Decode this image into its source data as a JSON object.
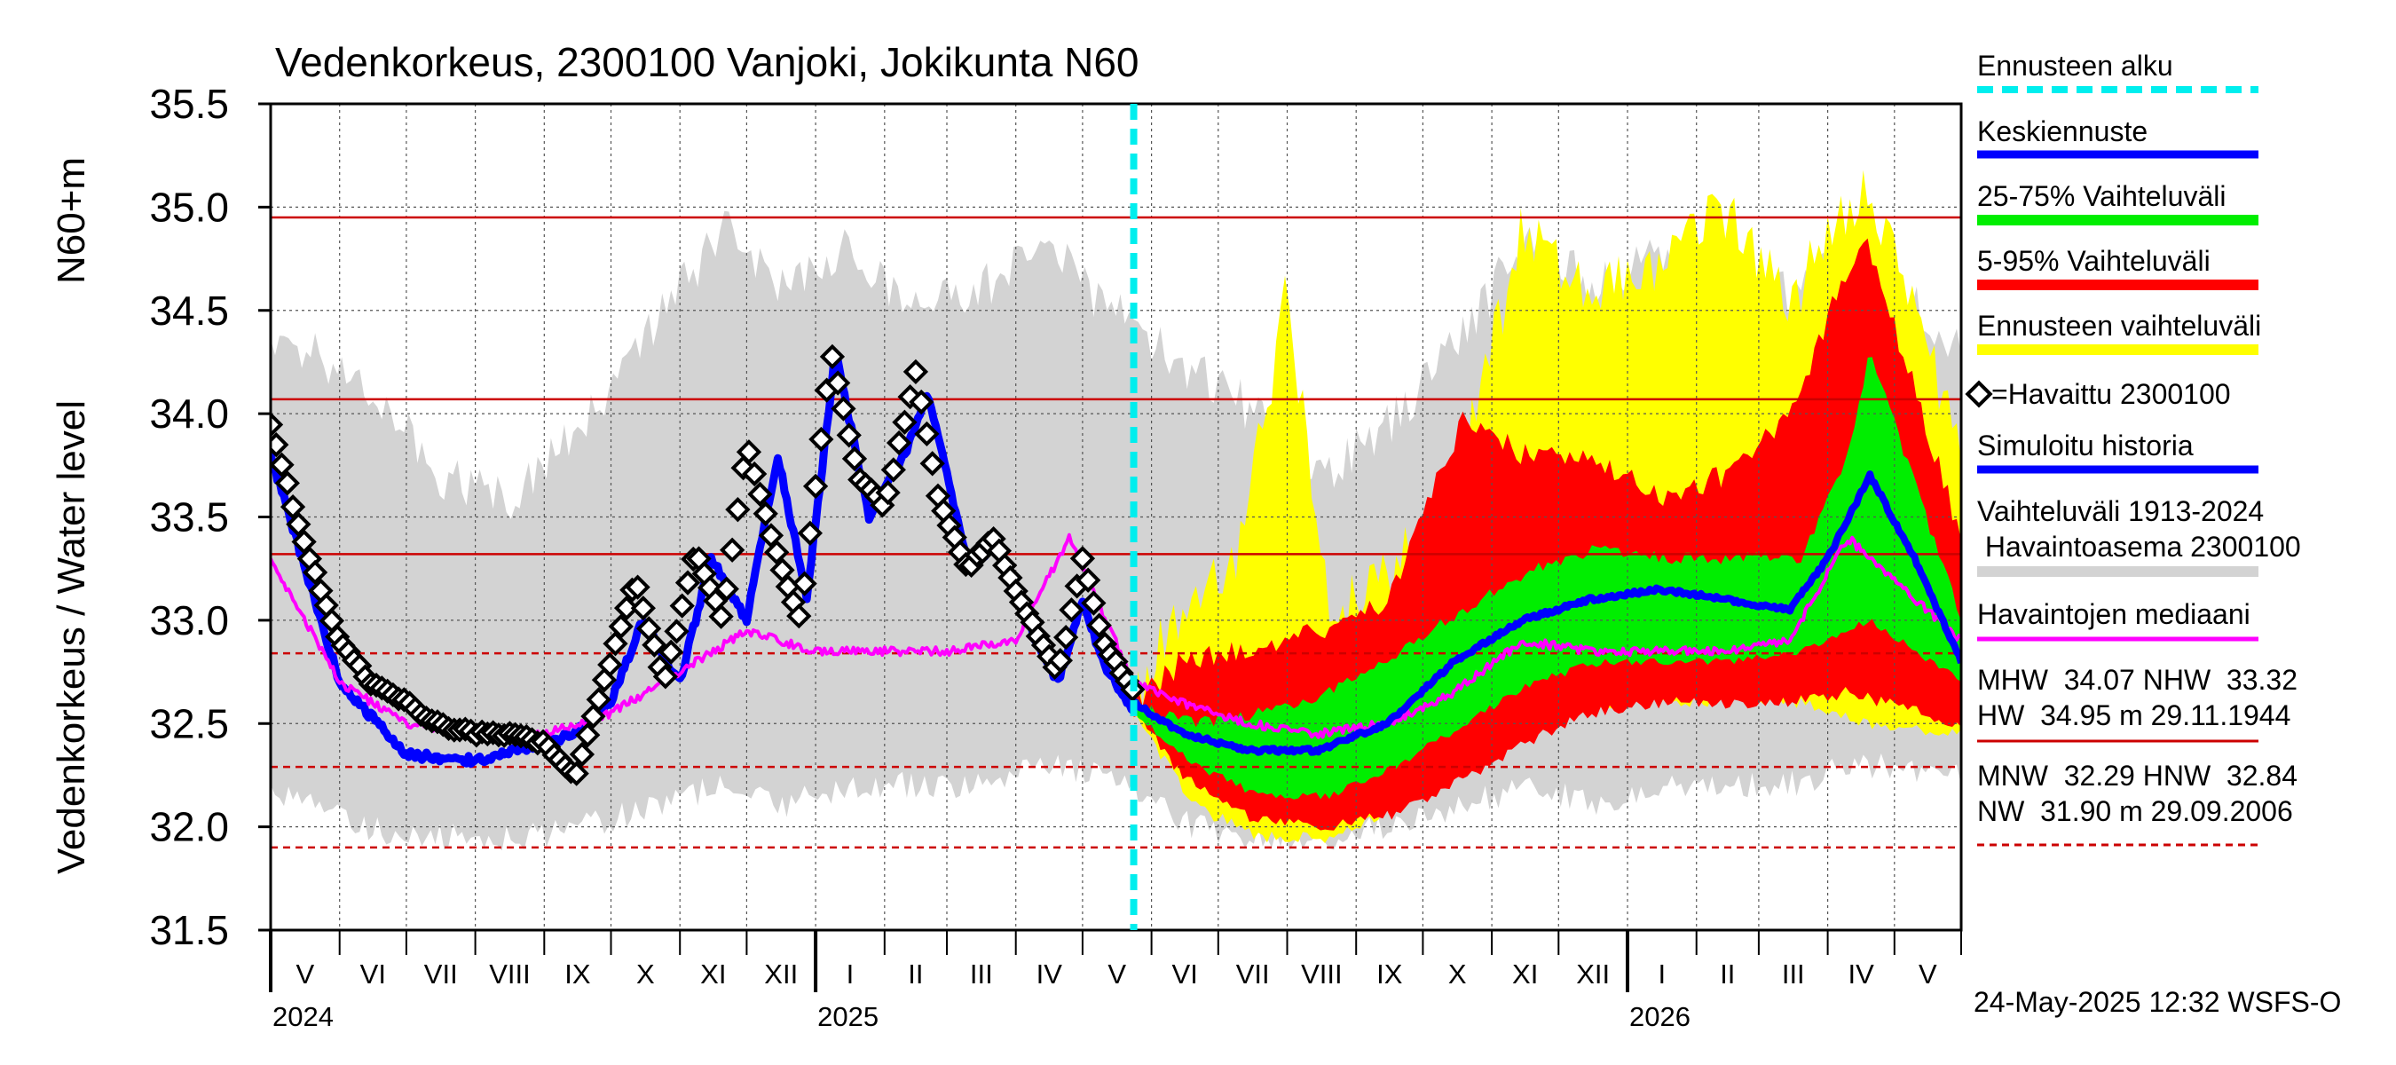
{
  "chart_data": {
    "type": "line",
    "title": "Vedenkorkeus, 2300100 Vanjoki, Jokikunta N60",
    "ylabel": "Vedenkorkeus / Water level",
    "yunit": "N60+m",
    "ylim": [
      31.5,
      35.5
    ],
    "yticks": [
      "31.5",
      "32.0",
      "32.5",
      "33.0",
      "33.5",
      "34.0",
      "34.5",
      "35.0",
      "35.5"
    ],
    "xlim": [
      "2024-05-01",
      "2026-05-31"
    ],
    "forecast_start": "2025-05-24",
    "months": [
      "V",
      "VI",
      "VII",
      "VIII",
      "IX",
      "X",
      "XI",
      "XII",
      "I",
      "II",
      "III",
      "IV",
      "V",
      "VI",
      "VII",
      "VIII",
      "IX",
      "X",
      "XI",
      "XII",
      "I",
      "II",
      "III",
      "IV",
      "V"
    ],
    "years": [
      {
        "label": "2024",
        "date": "2024-05-01"
      },
      {
        "label": "2025",
        "date": "2025-01-01"
      },
      {
        "label": "2026",
        "date": "2026-01-01"
      }
    ],
    "reference_lines": [
      {
        "name": "HW",
        "value": 34.95,
        "style": "solid"
      },
      {
        "name": "MHW",
        "value": 34.07,
        "style": "solid"
      },
      {
        "name": "NHW",
        "value": 33.32,
        "style": "solid"
      },
      {
        "name": "HNW",
        "value": 32.84,
        "style": "dashed"
      },
      {
        "name": "MNW",
        "value": 32.29,
        "style": "dashed"
      },
      {
        "name": "NW",
        "value": 31.9,
        "style": "dashed"
      }
    ],
    "legend": {
      "forecast_start": "Ennusteen alku",
      "mean_forecast": "Keskiennuste",
      "range_25_75": "25-75% Vaihteluväli",
      "range_5_95": "5-95% Vaihteluväli",
      "forecast_range": "Ennusteen vaihteluväli",
      "observed": "=Havaittu 2300100",
      "simulated": "Simuloitu historia",
      "hist_range_1": "Vaihteluväli 1913-2024",
      "hist_range_2": " Havaintoasema 2300100",
      "median": "Havaintojen mediaani"
    },
    "stats": {
      "line1": "MHW  34.07 NHW  33.32",
      "line2": "HW  34.95 m 29.11.1944",
      "line3": "MNW  32.29 HNW  32.84",
      "line4": "NW  31.90 m 29.09.2006"
    },
    "footer": "24-May-2025 12:32 WSFS-O",
    "colors": {
      "hist_range": "#d3d3d3",
      "forecast_range": "#ffff00",
      "range_5_95": "#ff0000",
      "range_25_75": "#00ee00",
      "mean": "#0000ff",
      "simulated": "#0000ff",
      "median": "#ff00ff",
      "observed": "#000000",
      "forecast_start": "#00eeee",
      "reference": "#cc0000"
    },
    "series": {
      "hist_range_upper": [
        [
          "2024-05-01",
          34.35
        ],
        [
          "2024-06-10",
          34.2
        ],
        [
          "2024-07-15",
          33.7
        ],
        [
          "2024-08-20",
          33.6
        ],
        [
          "2024-09-20",
          34.0
        ],
        [
          "2024-10-20",
          34.4
        ],
        [
          "2024-11-20",
          34.9
        ],
        [
          "2024-12-15",
          34.6
        ],
        [
          "2025-01-15",
          34.8
        ],
        [
          "2025-02-15",
          34.5
        ],
        [
          "2025-03-15",
          34.6
        ],
        [
          "2025-04-15",
          34.8
        ],
        [
          "2025-05-24",
          34.4
        ],
        [
          "2025-06-20",
          34.2
        ],
        [
          "2025-07-20",
          34.0
        ],
        [
          "2025-08-20",
          33.7
        ],
        [
          "2025-09-20",
          34.0
        ],
        [
          "2025-10-20",
          34.4
        ],
        [
          "2025-11-20",
          34.9
        ],
        [
          "2025-12-15",
          34.6
        ],
        [
          "2026-01-15",
          34.8
        ],
        [
          "2026-02-15",
          34.5
        ],
        [
          "2026-03-15",
          34.6
        ],
        [
          "2026-04-15",
          34.8
        ],
        [
          "2026-05-31",
          34.3
        ]
      ],
      "hist_range_lower": [
        [
          "2024-05-01",
          32.2
        ],
        [
          "2024-06-10",
          32.0
        ],
        [
          "2024-07-15",
          31.95
        ],
        [
          "2024-08-20",
          31.95
        ],
        [
          "2024-09-20",
          32.0
        ],
        [
          "2024-10-20",
          32.1
        ],
        [
          "2024-11-20",
          32.2
        ],
        [
          "2024-12-15",
          32.1
        ],
        [
          "2025-01-15",
          32.2
        ],
        [
          "2025-02-15",
          32.2
        ],
        [
          "2025-03-15",
          32.2
        ],
        [
          "2025-04-15",
          32.3
        ],
        [
          "2025-05-24",
          32.2
        ],
        [
          "2025-06-20",
          32.0
        ],
        [
          "2025-07-20",
          31.95
        ],
        [
          "2025-08-20",
          31.95
        ],
        [
          "2025-09-20",
          32.0
        ],
        [
          "2025-10-20",
          32.1
        ],
        [
          "2025-11-20",
          32.2
        ],
        [
          "2025-12-15",
          32.1
        ],
        [
          "2026-01-15",
          32.2
        ],
        [
          "2026-02-15",
          32.2
        ],
        [
          "2026-03-15",
          32.2
        ],
        [
          "2026-04-15",
          32.3
        ],
        [
          "2026-05-31",
          32.25
        ]
      ],
      "forecast_upper": [
        [
          "2025-05-24",
          32.6
        ],
        [
          "2025-06-10",
          33.0
        ],
        [
          "2025-07-10",
          33.3
        ],
        [
          "2025-08-01",
          34.6
        ],
        [
          "2025-08-20",
          33.0
        ],
        [
          "2025-09-15",
          33.2
        ],
        [
          "2025-10-15",
          33.6
        ],
        [
          "2025-11-15",
          34.9
        ],
        [
          "2025-12-15",
          34.6
        ],
        [
          "2026-01-15",
          34.7
        ],
        [
          "2026-02-15",
          35.0
        ],
        [
          "2026-03-15",
          34.5
        ],
        [
          "2026-04-01",
          34.9
        ],
        [
          "2026-04-20",
          35.1
        ],
        [
          "2026-05-31",
          33.8
        ]
      ],
      "forecast_lower": [
        [
          "2025-05-24",
          32.55
        ],
        [
          "2025-06-20",
          32.1
        ],
        [
          "2025-07-20",
          31.95
        ],
        [
          "2025-08-20",
          31.95
        ],
        [
          "2025-09-20",
          32.1
        ],
        [
          "2025-10-20",
          32.3
        ],
        [
          "2025-11-20",
          32.5
        ],
        [
          "2025-12-20",
          32.6
        ],
        [
          "2026-01-20",
          32.6
        ],
        [
          "2026-02-20",
          32.6
        ],
        [
          "2026-03-20",
          32.6
        ],
        [
          "2026-04-20",
          32.5
        ],
        [
          "2026-05-31",
          32.45
        ]
      ],
      "p5_95_upper": [
        [
          "2025-05-24",
          32.6
        ],
        [
          "2025-06-15",
          32.8
        ],
        [
          "2025-07-15",
          32.85
        ],
        [
          "2025-08-15",
          32.95
        ],
        [
          "2025-09-15",
          33.1
        ],
        [
          "2025-10-01",
          33.5
        ],
        [
          "2025-10-20",
          34.0
        ],
        [
          "2025-11-15",
          33.8
        ],
        [
          "2025-12-15",
          33.8
        ],
        [
          "2026-01-15",
          33.6
        ],
        [
          "2026-02-15",
          33.7
        ],
        [
          "2026-03-15",
          34.0
        ],
        [
          "2026-04-10",
          34.7
        ],
        [
          "2026-04-20",
          34.8
        ],
        [
          "2026-05-31",
          33.4
        ]
      ],
      "p5_95_lower": [
        [
          "2025-05-24",
          32.55
        ],
        [
          "2025-06-15",
          32.25
        ],
        [
          "2025-07-15",
          32.05
        ],
        [
          "2025-08-15",
          32.0
        ],
        [
          "2025-09-15",
          32.05
        ],
        [
          "2025-10-15",
          32.2
        ],
        [
          "2025-11-15",
          32.4
        ],
        [
          "2025-12-15",
          32.55
        ],
        [
          "2026-01-15",
          32.6
        ],
        [
          "2026-02-15",
          32.6
        ],
        [
          "2026-03-15",
          32.6
        ],
        [
          "2026-04-10",
          32.65
        ],
        [
          "2026-05-31",
          32.5
        ]
      ],
      "p25_75_upper": [
        [
          "2025-05-24",
          32.6
        ],
        [
          "2025-06-20",
          32.5
        ],
        [
          "2025-07-20",
          32.55
        ],
        [
          "2025-08-20",
          32.65
        ],
        [
          "2025-09-20",
          32.85
        ],
        [
          "2025-10-20",
          33.05
        ],
        [
          "2025-11-20",
          33.25
        ],
        [
          "2025-12-20",
          33.35
        ],
        [
          "2026-01-20",
          33.3
        ],
        [
          "2026-02-20",
          33.3
        ],
        [
          "2026-03-20",
          33.3
        ],
        [
          "2026-04-10",
          33.8
        ],
        [
          "2026-04-20",
          34.3
        ],
        [
          "2026-05-31",
          33.0
        ]
      ],
      "p25_75_lower": [
        [
          "2025-05-24",
          32.55
        ],
        [
          "2025-06-20",
          32.3
        ],
        [
          "2025-07-20",
          32.15
        ],
        [
          "2025-08-20",
          32.15
        ],
        [
          "2025-09-20",
          32.3
        ],
        [
          "2025-10-20",
          32.5
        ],
        [
          "2025-11-20",
          32.7
        ],
        [
          "2025-12-20",
          32.8
        ],
        [
          "2026-01-20",
          32.8
        ],
        [
          "2026-02-20",
          32.8
        ],
        [
          "2026-03-20",
          32.85
        ],
        [
          "2026-04-20",
          33.0
        ],
        [
          "2026-05-31",
          32.7
        ]
      ],
      "mean": [
        [
          "2025-05-24",
          32.6
        ],
        [
          "2025-06-15",
          32.45
        ],
        [
          "2025-07-15",
          32.37
        ],
        [
          "2025-08-15",
          32.37
        ],
        [
          "2025-09-15",
          32.5
        ],
        [
          "2025-10-15",
          32.8
        ],
        [
          "2025-11-15",
          33.0
        ],
        [
          "2025-12-15",
          33.1
        ],
        [
          "2026-01-15",
          33.15
        ],
        [
          "2026-02-15",
          33.1
        ],
        [
          "2026-03-15",
          33.05
        ],
        [
          "2026-04-01",
          33.3
        ],
        [
          "2026-04-20",
          33.7
        ],
        [
          "2026-05-10",
          33.3
        ],
        [
          "2026-05-31",
          32.8
        ]
      ],
      "median": [
        [
          "2024-05-01",
          33.3
        ],
        [
          "2024-06-01",
          32.7
        ],
        [
          "2024-07-01",
          32.5
        ],
        [
          "2024-08-01",
          32.45
        ],
        [
          "2024-09-01",
          32.45
        ],
        [
          "2024-10-01",
          32.55
        ],
        [
          "2024-11-01",
          32.75
        ],
        [
          "2024-12-01",
          32.95
        ],
        [
          "2025-01-01",
          32.85
        ],
        [
          "2025-02-01",
          32.85
        ],
        [
          "2025-03-01",
          32.85
        ],
        [
          "2025-04-01",
          32.9
        ],
        [
          "2025-04-25",
          33.4
        ],
        [
          "2025-05-24",
          32.7
        ],
        [
          "2025-06-15",
          32.6
        ],
        [
          "2025-07-15",
          32.5
        ],
        [
          "2025-08-15",
          32.45
        ],
        [
          "2025-09-15",
          32.5
        ],
        [
          "2025-10-15",
          32.65
        ],
        [
          "2025-11-15",
          32.9
        ],
        [
          "2025-12-15",
          32.85
        ],
        [
          "2026-01-15",
          32.85
        ],
        [
          "2026-02-15",
          32.85
        ],
        [
          "2026-03-15",
          32.9
        ],
        [
          "2026-04-10",
          33.4
        ],
        [
          "2026-05-31",
          32.9
        ]
      ],
      "simulated": [
        [
          "2024-05-01",
          33.8
        ],
        [
          "2024-06-01",
          32.7
        ],
        [
          "2024-07-01",
          32.35
        ],
        [
          "2024-08-01",
          32.32
        ],
        [
          "2024-09-01",
          32.4
        ],
        [
          "2024-09-15",
          32.45
        ],
        [
          "2024-10-01",
          32.6
        ],
        [
          "2024-10-15",
          33.0
        ],
        [
          "2024-11-01",
          32.7
        ],
        [
          "2024-11-15",
          33.3
        ],
        [
          "2024-12-01",
          33.0
        ],
        [
          "2024-12-15",
          33.8
        ],
        [
          "2024-12-28",
          33.1
        ],
        [
          "2025-01-10",
          34.3
        ],
        [
          "2025-01-25",
          33.5
        ],
        [
          "2025-02-10",
          33.8
        ],
        [
          "2025-02-20",
          34.1
        ],
        [
          "2025-03-10",
          33.3
        ],
        [
          "2025-03-25",
          33.35
        ],
        [
          "2025-04-10",
          32.9
        ],
        [
          "2025-04-20",
          32.7
        ],
        [
          "2025-05-01",
          33.1
        ],
        [
          "2025-05-10",
          32.8
        ],
        [
          "2025-05-24",
          32.55
        ]
      ],
      "observed": [
        [
          "2024-05-01",
          33.95
        ],
        [
          "2024-05-15",
          33.4
        ],
        [
          "2024-06-01",
          32.9
        ],
        [
          "2024-06-15",
          32.7
        ],
        [
          "2024-07-01",
          32.6
        ],
        [
          "2024-07-15",
          32.5
        ],
        [
          "2024-08-01",
          32.45
        ],
        [
          "2024-08-20",
          32.45
        ],
        [
          "2024-09-01",
          32.4
        ],
        [
          "2024-09-15",
          32.25
        ],
        [
          "2024-09-25",
          32.6
        ],
        [
          "2024-10-05",
          32.95
        ],
        [
          "2024-10-12",
          33.2
        ],
        [
          "2024-10-25",
          32.7
        ],
        [
          "2024-11-08",
          33.35
        ],
        [
          "2024-11-20",
          33.0
        ],
        [
          "2024-12-01",
          33.85
        ],
        [
          "2024-12-15",
          33.3
        ],
        [
          "2024-12-25",
          33.0
        ],
        [
          "2025-01-08",
          34.3
        ],
        [
          "2025-01-20",
          33.7
        ],
        [
          "2025-02-01",
          33.55
        ],
        [
          "2025-02-15",
          34.2
        ],
        [
          "2025-02-25",
          33.6
        ],
        [
          "2025-03-10",
          33.25
        ],
        [
          "2025-03-22",
          33.4
        ],
        [
          "2025-04-05",
          33.05
        ],
        [
          "2025-04-20",
          32.75
        ],
        [
          "2025-05-01",
          33.3
        ],
        [
          "2025-05-10",
          32.9
        ],
        [
          "2025-05-24",
          32.65
        ]
      ]
    }
  }
}
